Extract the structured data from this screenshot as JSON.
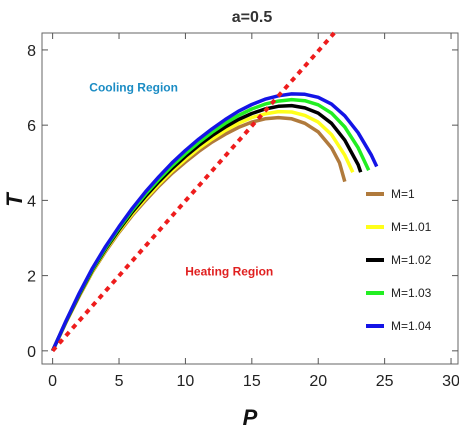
{
  "chart_data": {
    "type": "line",
    "title": "a=0.5",
    "xlabel": "P",
    "ylabel": "T",
    "xlim": [
      -0.8,
      30.6
    ],
    "ylim": [
      -0.35,
      8.45
    ],
    "xticks": [
      0,
      5,
      10,
      15,
      20,
      25,
      30
    ],
    "yticks": [
      0,
      2,
      4,
      6,
      8
    ],
    "grid": false,
    "legend_position": "right",
    "annotations": [
      {
        "text": "Cooling Region",
        "x": 6.1,
        "y": 6.9,
        "color": "#1b8cc4"
      },
      {
        "text": "Heating Region",
        "x": 13.3,
        "y": 2.0,
        "color": "#e02020"
      }
    ],
    "series": [
      {
        "name": "M=1",
        "color": "#b07a3c",
        "points": [
          [
            0,
            0
          ],
          [
            1,
            0.75
          ],
          [
            2,
            1.45
          ],
          [
            3,
            2.1
          ],
          [
            4,
            2.65
          ],
          [
            5,
            3.15
          ],
          [
            6,
            3.6
          ],
          [
            7,
            4.0
          ],
          [
            8,
            4.38
          ],
          [
            9,
            4.72
          ],
          [
            10,
            5.02
          ],
          [
            11,
            5.3
          ],
          [
            12,
            5.55
          ],
          [
            13,
            5.76
          ],
          [
            14,
            5.94
          ],
          [
            15,
            6.08
          ],
          [
            16,
            6.17
          ],
          [
            17,
            6.2
          ],
          [
            18,
            6.17
          ],
          [
            19,
            6.05
          ],
          [
            20,
            5.82
          ],
          [
            21,
            5.4
          ],
          [
            21.6,
            5.0
          ],
          [
            22,
            4.5
          ]
        ]
      },
      {
        "name": "M=1.01",
        "color": "#ffff1a",
        "points": [
          [
            0,
            0
          ],
          [
            1,
            0.76
          ],
          [
            2,
            1.47
          ],
          [
            3,
            2.12
          ],
          [
            4,
            2.68
          ],
          [
            5,
            3.18
          ],
          [
            6,
            3.64
          ],
          [
            7,
            4.05
          ],
          [
            8,
            4.43
          ],
          [
            9,
            4.78
          ],
          [
            10,
            5.09
          ],
          [
            11,
            5.38
          ],
          [
            12,
            5.63
          ],
          [
            13,
            5.86
          ],
          [
            14,
            6.05
          ],
          [
            15,
            6.2
          ],
          [
            16,
            6.3
          ],
          [
            17,
            6.36
          ],
          [
            18,
            6.35
          ],
          [
            19,
            6.26
          ],
          [
            20,
            6.08
          ],
          [
            21,
            5.75
          ],
          [
            22,
            5.2
          ],
          [
            22.6,
            4.75
          ]
        ]
      },
      {
        "name": "M=1.02",
        "color": "#000000",
        "points": [
          [
            0,
            0
          ],
          [
            1,
            0.77
          ],
          [
            2,
            1.49
          ],
          [
            3,
            2.15
          ],
          [
            4,
            2.71
          ],
          [
            5,
            3.22
          ],
          [
            6,
            3.69
          ],
          [
            7,
            4.11
          ],
          [
            8,
            4.5
          ],
          [
            9,
            4.85
          ],
          [
            10,
            5.17
          ],
          [
            11,
            5.46
          ],
          [
            12,
            5.72
          ],
          [
            13,
            5.95
          ],
          [
            14,
            6.15
          ],
          [
            15,
            6.31
          ],
          [
            16,
            6.43
          ],
          [
            17,
            6.5
          ],
          [
            18,
            6.52
          ],
          [
            19,
            6.46
          ],
          [
            20,
            6.32
          ],
          [
            21,
            6.05
          ],
          [
            22,
            5.6
          ],
          [
            23,
            4.95
          ],
          [
            23.2,
            4.75
          ]
        ]
      },
      {
        "name": "M=1.03",
        "color": "#22ee22",
        "points": [
          [
            0,
            0
          ],
          [
            1,
            0.78
          ],
          [
            2,
            1.51
          ],
          [
            3,
            2.17
          ],
          [
            4,
            2.74
          ],
          [
            5,
            3.26
          ],
          [
            6,
            3.74
          ],
          [
            7,
            4.17
          ],
          [
            8,
            4.56
          ],
          [
            9,
            4.92
          ],
          [
            10,
            5.24
          ],
          [
            11,
            5.54
          ],
          [
            12,
            5.81
          ],
          [
            13,
            6.05
          ],
          [
            14,
            6.26
          ],
          [
            15,
            6.43
          ],
          [
            16,
            6.56
          ],
          [
            17,
            6.64
          ],
          [
            18,
            6.68
          ],
          [
            19,
            6.65
          ],
          [
            20,
            6.54
          ],
          [
            21,
            6.32
          ],
          [
            22,
            5.95
          ],
          [
            23,
            5.4
          ],
          [
            23.8,
            4.8
          ]
        ]
      },
      {
        "name": "M=1.04",
        "color": "#1414e6",
        "points": [
          [
            0,
            0
          ],
          [
            1,
            0.79
          ],
          [
            2,
            1.53
          ],
          [
            3,
            2.2
          ],
          [
            4,
            2.78
          ],
          [
            5,
            3.3
          ],
          [
            6,
            3.79
          ],
          [
            7,
            4.23
          ],
          [
            8,
            4.63
          ],
          [
            9,
            5.0
          ],
          [
            10,
            5.33
          ],
          [
            11,
            5.63
          ],
          [
            12,
            5.9
          ],
          [
            13,
            6.15
          ],
          [
            14,
            6.37
          ],
          [
            15,
            6.55
          ],
          [
            16,
            6.69
          ],
          [
            17,
            6.78
          ],
          [
            18,
            6.83
          ],
          [
            19,
            6.82
          ],
          [
            20,
            6.74
          ],
          [
            21,
            6.56
          ],
          [
            22,
            6.25
          ],
          [
            23,
            5.8
          ],
          [
            24,
            5.2
          ],
          [
            24.4,
            4.9
          ]
        ]
      },
      {
        "name": "",
        "color": "#ee1c1c",
        "dashed": true,
        "points": [
          [
            0,
            0
          ],
          [
            21.2,
            8.45
          ]
        ]
      }
    ]
  }
}
